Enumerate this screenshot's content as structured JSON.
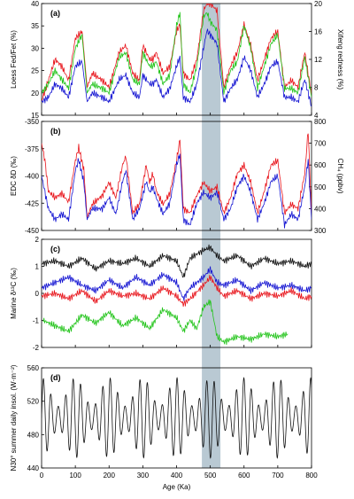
{
  "chart_data": [
    {
      "type": "line",
      "panel": "(a)",
      "xlim": [
        0,
        800
      ],
      "ylabel": "Loess Fed/Fet (%)",
      "ylim": [
        15,
        40
      ],
      "yticks": [
        15,
        20,
        25,
        30,
        35,
        40
      ],
      "ylabel_right": "Xifeng redness (%)",
      "ylim_right": [
        4,
        20
      ],
      "yticks_right": [
        4,
        8,
        12,
        16,
        20
      ],
      "series": [
        {
          "color": "#e8141b",
          "axis": "right",
          "x": [
            0,
            20,
            40,
            60,
            80,
            100,
            120,
            135,
            150,
            180,
            200,
            230,
            250,
            270,
            290,
            300,
            320,
            330,
            340,
            360,
            380,
            400,
            410,
            420,
            440,
            460,
            480,
            490,
            500,
            520,
            540,
            560,
            580,
            600,
            620,
            640,
            660,
            680,
            700,
            720,
            740,
            760,
            780,
            800
          ],
          "y": [
            6,
            9,
            12,
            11,
            9,
            15,
            16,
            8,
            10,
            9,
            8,
            13,
            14,
            10,
            9,
            14,
            12,
            12,
            13,
            10,
            11,
            16,
            17,
            10,
            9,
            12,
            19,
            20,
            20,
            19,
            8,
            11,
            13,
            17,
            14,
            9,
            12,
            15,
            16,
            8,
            9,
            8,
            13,
            7
          ]
        },
        {
          "color": "#22c41a",
          "axis": "left",
          "x": [
            0,
            20,
            40,
            60,
            80,
            100,
            120,
            135,
            150,
            180,
            200,
            230,
            250,
            270,
            290,
            300,
            320,
            330,
            340,
            360,
            380,
            400,
            410,
            420,
            440,
            460,
            480,
            490,
            500,
            520,
            540,
            560,
            580,
            600,
            620,
            640,
            660,
            680,
            700,
            720,
            740,
            760,
            780,
            800
          ],
          "y": [
            20,
            22,
            25,
            23,
            21,
            30,
            33,
            20,
            22,
            21,
            20,
            28,
            29,
            23,
            22,
            29,
            26,
            26,
            27,
            22,
            24,
            35,
            38,
            22,
            20,
            26,
            37,
            38,
            36,
            34,
            20,
            25,
            27,
            35,
            30,
            21,
            26,
            31,
            33,
            21,
            21,
            20,
            28,
            19
          ]
        },
        {
          "color": "#1414d2",
          "axis": "left",
          "x": [
            0,
            20,
            40,
            60,
            80,
            100,
            120,
            135,
            150,
            180,
            200,
            230,
            250,
            270,
            290,
            300,
            320,
            330,
            340,
            360,
            380,
            400,
            410,
            420,
            440,
            460,
            480,
            490,
            500,
            520,
            540,
            560,
            580,
            600,
            620,
            640,
            660,
            680,
            700,
            720,
            740,
            760,
            780,
            800
          ],
          "y": [
            18,
            19,
            22,
            21,
            19,
            26,
            27,
            18,
            20,
            19,
            18,
            23,
            24,
            20,
            19,
            24,
            22,
            22,
            23,
            19,
            21,
            26,
            28,
            19,
            18,
            22,
            30,
            34,
            33,
            31,
            18,
            21,
            23,
            28,
            25,
            19,
            22,
            26,
            27,
            19,
            19,
            18,
            23,
            17
          ]
        }
      ]
    },
    {
      "type": "line",
      "panel": "(b)",
      "xlim": [
        0,
        800
      ],
      "ylabel": "EDC δD (‰)",
      "ylim": [
        -450,
        -350
      ],
      "yticks": [
        -450,
        -425,
        -400,
        -375,
        -350
      ],
      "ylabel_right": "CH₄ (ppbv)",
      "ylim_right": [
        300,
        800
      ],
      "yticks_right": [
        300,
        400,
        500,
        600,
        700,
        800
      ],
      "series": [
        {
          "color": "#e8141b",
          "axis": "right",
          "x": [
            0,
            10,
            20,
            40,
            60,
            80,
            100,
            110,
            125,
            135,
            150,
            180,
            200,
            220,
            240,
            250,
            270,
            290,
            310,
            320,
            330,
            340,
            360,
            380,
            400,
            410,
            420,
            440,
            460,
            480,
            500,
            520,
            540,
            560,
            580,
            600,
            620,
            640,
            660,
            680,
            700,
            720,
            740,
            760,
            780,
            790,
            800
          ],
          "y": [
            700,
            620,
            480,
            450,
            470,
            430,
            620,
            680,
            580,
            360,
            420,
            460,
            520,
            450,
            600,
            640,
            380,
            420,
            600,
            520,
            560,
            480,
            420,
            470,
            620,
            720,
            400,
            380,
            460,
            520,
            480,
            500,
            380,
            450,
            560,
            600,
            520,
            380,
            480,
            600,
            620,
            380,
            420,
            400,
            560,
            760,
            380
          ]
        },
        {
          "color": "#1414d2",
          "axis": "left",
          "x": [
            0,
            10,
            20,
            40,
            60,
            80,
            100,
            110,
            125,
            135,
            150,
            180,
            200,
            220,
            240,
            250,
            270,
            290,
            310,
            320,
            330,
            340,
            360,
            380,
            400,
            410,
            420,
            440,
            460,
            480,
            500,
            520,
            540,
            560,
            580,
            600,
            620,
            640,
            660,
            680,
            700,
            720,
            740,
            760,
            780,
            790,
            800
          ],
          "y": [
            -400,
            -415,
            -430,
            -440,
            -435,
            -440,
            -395,
            -385,
            -405,
            -440,
            -430,
            -430,
            -420,
            -435,
            -405,
            -395,
            -440,
            -430,
            -405,
            -415,
            -410,
            -420,
            -435,
            -425,
            -390,
            -380,
            -440,
            -445,
            -425,
            -415,
            -420,
            -415,
            -440,
            -430,
            -410,
            -400,
            -415,
            -440,
            -425,
            -405,
            -400,
            -445,
            -435,
            -440,
            -410,
            -385,
            -440
          ]
        }
      ]
    },
    {
      "type": "line",
      "panel": "(c)",
      "xlim": [
        0,
        800
      ],
      "ylabel": "Marine δ¹³C (‰)",
      "ylim": [
        -2,
        2
      ],
      "yticks": [
        -2,
        -1,
        0,
        1,
        2
      ],
      "series": [
        {
          "color": "#111111",
          "x": [
            0,
            40,
            80,
            120,
            160,
            200,
            240,
            280,
            320,
            360,
            400,
            420,
            440,
            480,
            500,
            520,
            540,
            580,
            620,
            660,
            700,
            740,
            780,
            800
          ],
          "y": [
            1.1,
            1.2,
            1.0,
            1.3,
            0.9,
            1.2,
            1.1,
            1.3,
            1.0,
            1.4,
            1.2,
            0.6,
            1.3,
            1.6,
            1.7,
            1.4,
            1.2,
            1.4,
            1.0,
            1.3,
            1.1,
            1.2,
            1.0,
            1.1
          ]
        },
        {
          "color": "#1414d2",
          "x": [
            0,
            40,
            80,
            120,
            160,
            200,
            240,
            280,
            320,
            360,
            400,
            420,
            440,
            480,
            500,
            520,
            540,
            580,
            620,
            660,
            700,
            740,
            780,
            800
          ],
          "y": [
            0.2,
            0.4,
            0.6,
            0.3,
            0.1,
            0.5,
            0.2,
            0.6,
            0.3,
            0.7,
            0.4,
            -0.2,
            0.2,
            0.6,
            0.9,
            0.4,
            0.3,
            0.5,
            0.1,
            0.4,
            0.2,
            0.3,
            0.1,
            0.2
          ]
        },
        {
          "color": "#e8141b",
          "x": [
            0,
            40,
            80,
            120,
            160,
            200,
            240,
            280,
            320,
            360,
            400,
            420,
            440,
            480,
            500,
            520,
            540,
            580,
            620,
            660,
            700,
            740,
            780,
            800
          ],
          "y": [
            -0.1,
            0.0,
            -0.2,
            0.1,
            -0.3,
            0.1,
            -0.1,
            0.0,
            -0.2,
            0.2,
            -0.1,
            -0.4,
            -0.2,
            0.3,
            0.6,
            0.2,
            -0.1,
            0.1,
            -0.2,
            0.0,
            -0.1,
            0.1,
            -0.2,
            -0.1
          ]
        },
        {
          "color": "#22c41a",
          "x": [
            5,
            40,
            80,
            120,
            160,
            200,
            240,
            280,
            320,
            360,
            400,
            420,
            440,
            460,
            480,
            500,
            520,
            540,
            580,
            620,
            660,
            700,
            730
          ],
          "y": [
            -1.0,
            -1.2,
            -1.4,
            -0.8,
            -1.1,
            -0.7,
            -1.2,
            -0.9,
            -1.3,
            -0.6,
            -0.9,
            -1.4,
            -1.0,
            -1.3,
            -0.5,
            -0.3,
            -1.6,
            -1.8,
            -1.6,
            -1.7,
            -1.5,
            -1.6,
            -1.5
          ]
        }
      ]
    },
    {
      "type": "line",
      "panel": "(d)",
      "xlim": [
        0,
        800
      ],
      "xticks": [
        0,
        100,
        200,
        300,
        400,
        500,
        600,
        700,
        800
      ],
      "xlabel": "Age (Ka)",
      "ylabel": "N30° summer daily insol. (W·m⁻²)",
      "ylim": [
        440,
        560
      ],
      "yticks": [
        440,
        480,
        520,
        560
      ],
      "series": [
        {
          "color": "#111111",
          "precession_period_ka": 22,
          "eccentricity_period_ka": 100,
          "mean": 500,
          "amplitude_min": 14,
          "amplitude_max": 48,
          "x_range": [
            0,
            800
          ]
        }
      ]
    }
  ],
  "shaded_band": {
    "x": [
      475,
      530
    ],
    "color": "#b9c9d3"
  }
}
